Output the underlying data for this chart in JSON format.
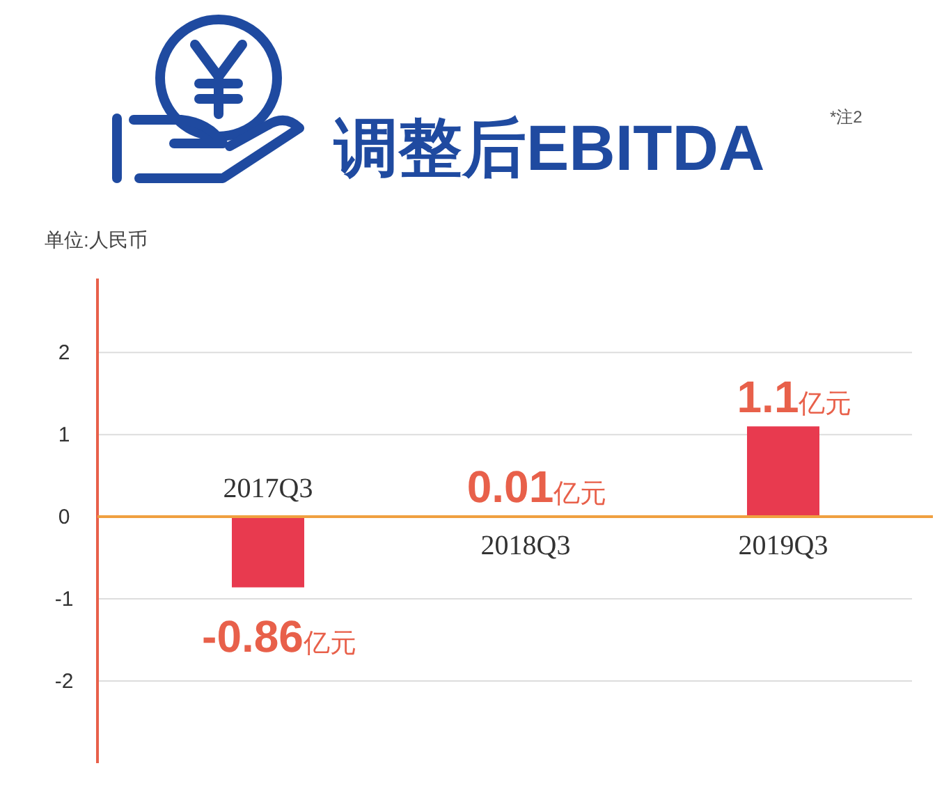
{
  "chart_data": {
    "type": "bar",
    "title": "调整后EBITDA",
    "subtitle": "单位:人民币",
    "annotations": [
      "*注2"
    ],
    "categories": [
      "2017Q3",
      "2018Q3",
      "2019Q3"
    ],
    "values": [
      -0.86,
      0.01,
      1.1
    ],
    "value_labels": [
      "-0.86亿元",
      "0.01亿元",
      "1.1亿元"
    ],
    "color": "#e83a4f",
    "ylim": [
      -3,
      2.9
    ],
    "yticks": [
      -2,
      -1,
      0,
      1,
      2
    ],
    "grid": "y"
  }
}
